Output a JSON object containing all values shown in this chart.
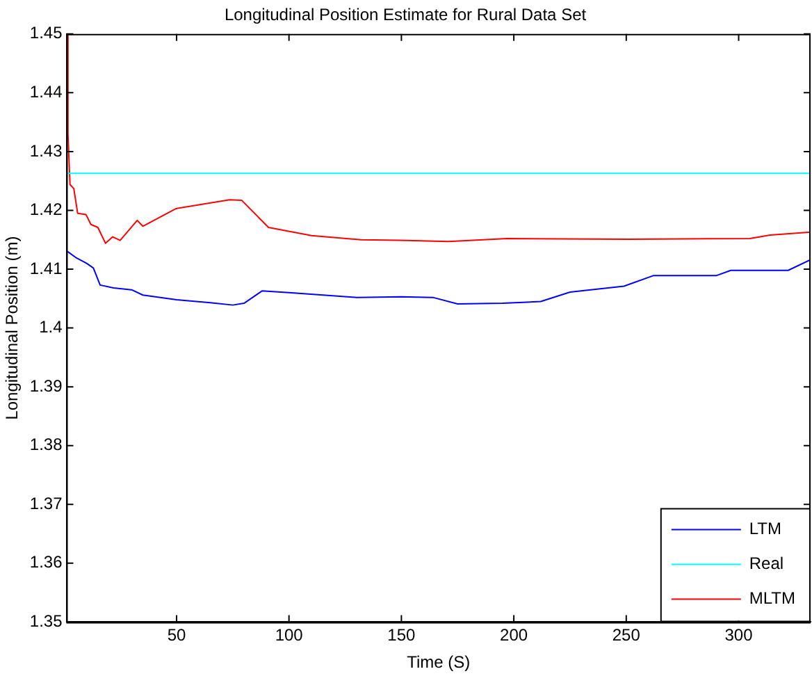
{
  "chart_data": {
    "type": "line",
    "title": "Longitudinal Position Estimate for Rural Data Set",
    "xlabel": "Time (S)",
    "ylabel": "Longitudinal Position (m)",
    "xlim": [
      1,
      332
    ],
    "xticks": [
      50,
      100,
      150,
      200,
      250,
      300
    ],
    "ylim": [
      1.35,
      1.45
    ],
    "yticks": [
      1.35,
      1.36,
      1.37,
      1.38,
      1.39,
      1.4,
      1.41,
      1.42,
      1.43,
      1.44,
      1.45
    ],
    "grid": false,
    "legend": "bottom right",
    "marker": "none",
    "line_style": "solid",
    "series": [
      {
        "name": "LTM",
        "color": "#0000ff",
        "x": [
          1.5,
          5.5,
          10,
          13,
          16,
          22,
          30,
          35,
          50,
          65,
          75,
          80,
          88,
          100,
          130,
          150,
          164,
          175,
          195,
          212,
          225,
          249,
          262,
          290,
          296.5,
          322,
          332
        ],
        "values": [
          1.413,
          1.4119,
          1.411,
          1.4102,
          1.4073,
          1.4068,
          1.4065,
          1.4056,
          1.4048,
          1.4043,
          1.4039,
          1.4042,
          1.4063,
          1.406,
          1.4052,
          1.4053,
          1.4052,
          1.4041,
          1.4042,
          1.4045,
          1.4061,
          1.4071,
          1.4089,
          1.4089,
          1.4098,
          1.4098,
          1.4116
        ]
      },
      {
        "name": "Real",
        "color": "#00ffff",
        "x": [
          1,
          332
        ],
        "values": [
          1.4263,
          1.4263
        ]
      },
      {
        "name": "MLTM",
        "color": "#ff0000",
        "x": [
          1.5,
          1.7,
          2.6,
          4.3,
          6,
          9.7,
          11.9,
          15,
          18.4,
          21.6,
          24.9,
          32.5,
          35,
          49.8,
          73.6,
          79,
          90.9,
          110,
          132,
          149,
          171,
          197,
          251,
          305,
          314,
          332
        ],
        "values": [
          1.45,
          1.433,
          1.4244,
          1.4237,
          1.4195,
          1.4193,
          1.4176,
          1.4171,
          1.4144,
          1.4155,
          1.4149,
          1.4183,
          1.4173,
          1.4203,
          1.4218,
          1.4217,
          1.4171,
          1.4157,
          1.415,
          1.4149,
          1.4147,
          1.4152,
          1.4151,
          1.4152,
          1.4158,
          1.4163
        ]
      }
    ]
  }
}
